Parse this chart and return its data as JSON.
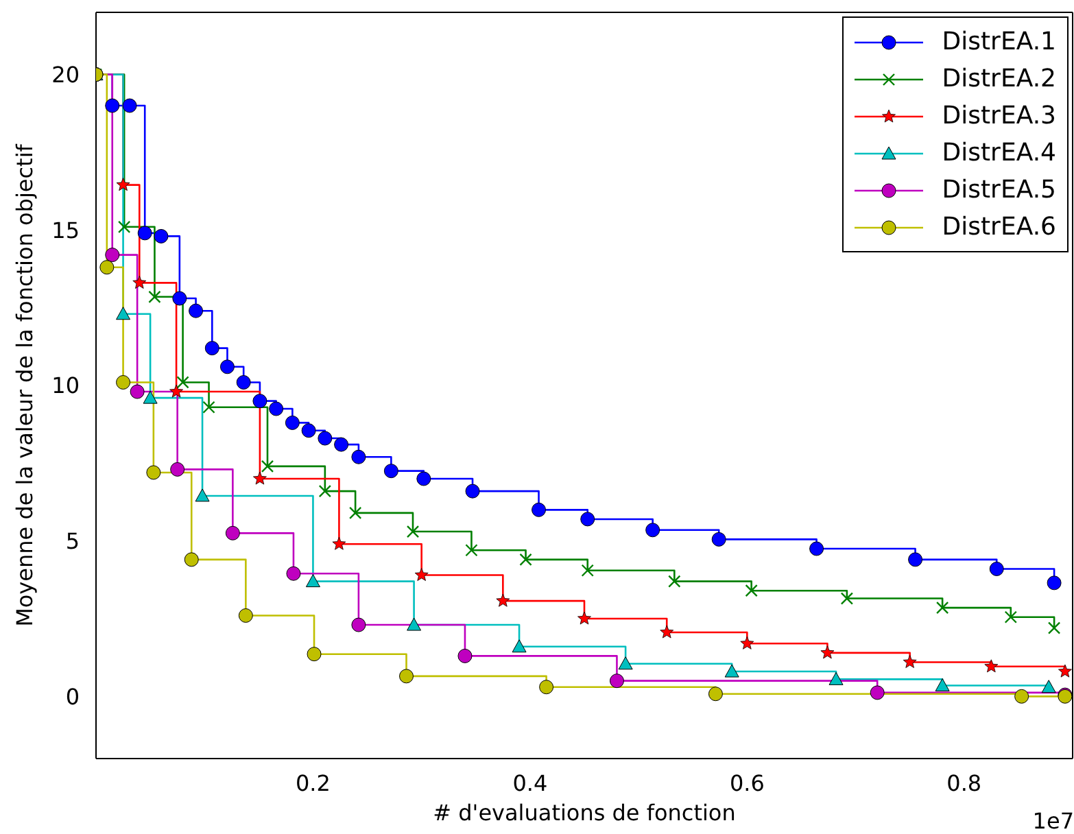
{
  "chart_data": {
    "type": "step",
    "xlabel": "# d'evaluations de fonction",
    "ylabel": "Moyenne de la valeur de la fonction objectif",
    "annotations": [
      "1e7"
    ],
    "xlim": [
      0,
      0.9
    ],
    "ylim": [
      -2,
      22
    ],
    "xticks": [
      0.2,
      0.4,
      0.6,
      0.8
    ],
    "yticks": [
      0,
      5,
      10,
      15,
      20
    ],
    "grid": false,
    "legend": "top right",
    "series": [
      {
        "name": "DistrEA.1",
        "color": "#0000ff",
        "marker": "circle",
        "x": [
          0,
          0.015,
          0.031,
          0.045,
          0.06,
          0.077,
          0.092,
          0.107,
          0.121,
          0.136,
          0.151,
          0.166,
          0.181,
          0.196,
          0.211,
          0.226,
          0.242,
          0.272,
          0.302,
          0.347,
          0.408,
          0.453,
          0.513,
          0.574,
          0.664,
          0.755,
          0.83,
          0.883
        ],
        "values": [
          20,
          19,
          19,
          14.9,
          14.8,
          12.8,
          12.4,
          11.2,
          10.6,
          10.1,
          9.5,
          9.25,
          8.8,
          8.55,
          8.3,
          8.1,
          7.7,
          7.25,
          7.0,
          6.6,
          6.0,
          5.7,
          5.35,
          5.05,
          4.75,
          4.4,
          4.1,
          3.65
        ]
      },
      {
        "name": "DistrEA.2",
        "color": "#008000",
        "marker": "cross",
        "x": [
          0,
          0.026,
          0.054,
          0.08,
          0.104,
          0.158,
          0.211,
          0.239,
          0.292,
          0.346,
          0.396,
          0.453,
          0.533,
          0.604,
          0.692,
          0.78,
          0.843,
          0.883
        ],
        "values": [
          20,
          15.1,
          12.85,
          10.1,
          9.3,
          7.4,
          6.6,
          5.9,
          5.3,
          4.7,
          4.4,
          4.05,
          3.7,
          3.4,
          3.15,
          2.85,
          2.55,
          2.2
        ]
      },
      {
        "name": "DistrEA.3",
        "color": "#ff0000",
        "marker": "star",
        "x": [
          0,
          0.025,
          0.04,
          0.074,
          0.151,
          0.224,
          0.3,
          0.375,
          0.45,
          0.526,
          0.6,
          0.674,
          0.75,
          0.825,
          0.893
        ],
        "values": [
          20,
          16.45,
          13.3,
          9.8,
          7.0,
          4.9,
          3.9,
          3.07,
          2.5,
          2.06,
          1.7,
          1.4,
          1.1,
          0.96,
          0.8
        ]
      },
      {
        "name": "DistrEA.4",
        "color": "#00bfbf",
        "marker": "triangle",
        "x": [
          0,
          0.025,
          0.05,
          0.098,
          0.2,
          0.293,
          0.39,
          0.488,
          0.586,
          0.682,
          0.78,
          0.878
        ],
        "values": [
          20,
          12.3,
          9.6,
          6.45,
          3.7,
          2.3,
          1.6,
          1.05,
          0.8,
          0.55,
          0.35,
          0.3
        ]
      },
      {
        "name": "DistrEA.5",
        "color": "#bf00bf",
        "marker": "circle",
        "x": [
          0,
          0.015,
          0.038,
          0.075,
          0.126,
          0.182,
          0.242,
          0.34,
          0.48,
          0.72,
          0.893
        ],
        "values": [
          20,
          14.2,
          9.8,
          7.3,
          5.25,
          3.95,
          2.3,
          1.3,
          0.5,
          0.12,
          0.05
        ]
      },
      {
        "name": "DistrEA.6",
        "color": "#bfbf00",
        "marker": "circle",
        "x": [
          0,
          0.01,
          0.025,
          0.053,
          0.088,
          0.138,
          0.201,
          0.286,
          0.415,
          0.571,
          0.853,
          0.893
        ],
        "values": [
          20,
          13.8,
          10.1,
          7.2,
          4.4,
          2.6,
          1.36,
          0.65,
          0.3,
          0.08,
          0,
          0
        ]
      }
    ]
  }
}
